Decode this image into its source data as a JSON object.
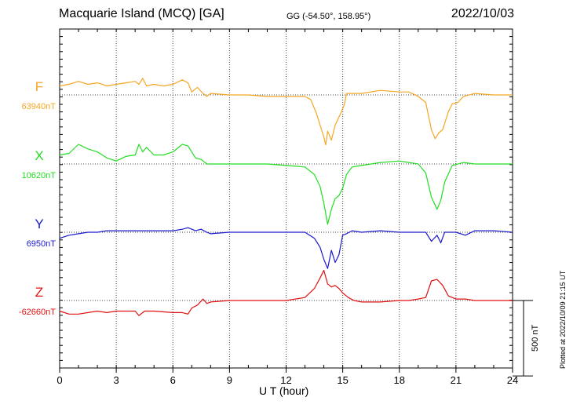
{
  "header": {
    "title": "Macquarie Island (MCQ)  [GA]",
    "coords": "GG (-54.50°, 158.95°)",
    "date": "2022/10/03"
  },
  "footer": {
    "plotted": "Plotted at 2022/10/09 21:15 UT"
  },
  "chart_data": {
    "type": "line",
    "title": "Macquarie Island (MCQ)  [GA]",
    "xlabel": "U T (hour)",
    "ylabel": "",
    "xlim": [
      0,
      24
    ],
    "xticks": [
      "0",
      "3",
      "6",
      "9",
      "12",
      "15",
      "18",
      "21",
      "24"
    ],
    "grid": true,
    "scale_bar": {
      "label": "500 nT",
      "value_nT": 500
    },
    "series": [
      {
        "name": "F",
        "baseline_label": "63940nT",
        "baseline_nT": 63940,
        "color": "#f5a623",
        "points": [
          [
            0,
            -60
          ],
          [
            0.5,
            -70
          ],
          [
            1,
            -90
          ],
          [
            1.5,
            -70
          ],
          [
            2,
            -80
          ],
          [
            2.5,
            -60
          ],
          [
            3,
            -70
          ],
          [
            3.5,
            -80
          ],
          [
            4,
            -90
          ],
          [
            4.2,
            -70
          ],
          [
            4.4,
            -110
          ],
          [
            4.6,
            -60
          ],
          [
            5,
            -70
          ],
          [
            5.5,
            -60
          ],
          [
            6,
            -70
          ],
          [
            6.5,
            -100
          ],
          [
            6.8,
            -80
          ],
          [
            7,
            -20
          ],
          [
            7.3,
            -50
          ],
          [
            7.6,
            -10
          ],
          [
            7.8,
            10
          ],
          [
            8,
            -10
          ],
          [
            9,
            0
          ],
          [
            10,
            0
          ],
          [
            11,
            10
          ],
          [
            12,
            10
          ],
          [
            13,
            10
          ],
          [
            13.3,
            30
          ],
          [
            13.6,
            120
          ],
          [
            13.8,
            200
          ],
          [
            14.0,
            280
          ],
          [
            14.1,
            330
          ],
          [
            14.2,
            240
          ],
          [
            14.4,
            300
          ],
          [
            14.6,
            200
          ],
          [
            14.9,
            120
          ],
          [
            15.1,
            60
          ],
          [
            15.2,
            -10
          ],
          [
            15.5,
            -10
          ],
          [
            16,
            -10
          ],
          [
            17,
            -30
          ],
          [
            18,
            -20
          ],
          [
            18.5,
            -20
          ],
          [
            19,
            10
          ],
          [
            19.4,
            50
          ],
          [
            19.7,
            230
          ],
          [
            19.9,
            290
          ],
          [
            20.1,
            250
          ],
          [
            20.3,
            230
          ],
          [
            20.6,
            110
          ],
          [
            20.8,
            60
          ],
          [
            21.1,
            50
          ],
          [
            21.4,
            10
          ],
          [
            22,
            -10
          ],
          [
            23,
            0
          ],
          [
            24,
            0
          ]
        ]
      },
      {
        "name": "X",
        "baseline_label": "10620nT",
        "baseline_nT": 10620,
        "color": "#22dd22",
        "points": [
          [
            0,
            -60
          ],
          [
            0.5,
            -70
          ],
          [
            1,
            -130
          ],
          [
            1.5,
            -100
          ],
          [
            2,
            -80
          ],
          [
            2.5,
            -40
          ],
          [
            3,
            -20
          ],
          [
            3.5,
            -50
          ],
          [
            4,
            -60
          ],
          [
            4.2,
            -130
          ],
          [
            4.4,
            -80
          ],
          [
            4.6,
            -110
          ],
          [
            5,
            -60
          ],
          [
            5.5,
            -60
          ],
          [
            6,
            -80
          ],
          [
            6.5,
            -130
          ],
          [
            6.8,
            -120
          ],
          [
            7.2,
            -40
          ],
          [
            7.5,
            -30
          ],
          [
            7.8,
            0
          ],
          [
            8,
            0
          ],
          [
            9,
            0
          ],
          [
            10,
            0
          ],
          [
            11,
            0
          ],
          [
            12,
            10
          ],
          [
            13,
            20
          ],
          [
            13.5,
            70
          ],
          [
            13.8,
            150
          ],
          [
            14.0,
            260
          ],
          [
            14.2,
            400
          ],
          [
            14.4,
            300
          ],
          [
            14.6,
            230
          ],
          [
            14.8,
            210
          ],
          [
            15.0,
            160
          ],
          [
            15.2,
            70
          ],
          [
            15.5,
            20
          ],
          [
            16,
            10
          ],
          [
            17,
            -10
          ],
          [
            18,
            -20
          ],
          [
            18.5,
            -10
          ],
          [
            19,
            0
          ],
          [
            19.4,
            60
          ],
          [
            19.7,
            220
          ],
          [
            20.0,
            300
          ],
          [
            20.2,
            240
          ],
          [
            20.4,
            120
          ],
          [
            20.8,
            10
          ],
          [
            21.4,
            -10
          ],
          [
            22,
            0
          ],
          [
            23,
            0
          ],
          [
            24,
            0
          ]
        ]
      },
      {
        "name": "Y",
        "baseline_label": "6950nT",
        "baseline_nT": 6950,
        "color": "#1a1acc",
        "points": [
          [
            0,
            40
          ],
          [
            0.5,
            20
          ],
          [
            1,
            10
          ],
          [
            1.5,
            0
          ],
          [
            2,
            0
          ],
          [
            2.5,
            -10
          ],
          [
            3,
            -10
          ],
          [
            3.5,
            -10
          ],
          [
            4,
            -10
          ],
          [
            5,
            -10
          ],
          [
            6,
            -10
          ],
          [
            6.5,
            -20
          ],
          [
            6.8,
            -30
          ],
          [
            7.2,
            -10
          ],
          [
            7.5,
            -20
          ],
          [
            7.8,
            0
          ],
          [
            8,
            10
          ],
          [
            9,
            0
          ],
          [
            10,
            0
          ],
          [
            11,
            0
          ],
          [
            12,
            0
          ],
          [
            13,
            0
          ],
          [
            13.5,
            40
          ],
          [
            13.8,
            100
          ],
          [
            14.0,
            180
          ],
          [
            14.2,
            240
          ],
          [
            14.4,
            120
          ],
          [
            14.6,
            200
          ],
          [
            14.8,
            150
          ],
          [
            15.0,
            20
          ],
          [
            15.2,
            10
          ],
          [
            15.5,
            -10
          ],
          [
            16,
            0
          ],
          [
            17,
            -10
          ],
          [
            18,
            0
          ],
          [
            18.5,
            0
          ],
          [
            19,
            0
          ],
          [
            19.4,
            0
          ],
          [
            19.7,
            60
          ],
          [
            20.0,
            20
          ],
          [
            20.2,
            70
          ],
          [
            20.4,
            0
          ],
          [
            21,
            0
          ],
          [
            21.5,
            20
          ],
          [
            22,
            -10
          ],
          [
            23,
            -10
          ],
          [
            24,
            0
          ]
        ]
      },
      {
        "name": "Z",
        "baseline_label": "-62660nT",
        "baseline_nT": -62660,
        "color": "#e01010",
        "points": [
          [
            0,
            70
          ],
          [
            0.5,
            90
          ],
          [
            1,
            90
          ],
          [
            1.5,
            80
          ],
          [
            2,
            70
          ],
          [
            2.5,
            80
          ],
          [
            3,
            70
          ],
          [
            3.5,
            70
          ],
          [
            4,
            70
          ],
          [
            4.2,
            100
          ],
          [
            4.5,
            70
          ],
          [
            5,
            70
          ],
          [
            6,
            80
          ],
          [
            6.5,
            80
          ],
          [
            6.8,
            90
          ],
          [
            7,
            50
          ],
          [
            7.3,
            30
          ],
          [
            7.6,
            -10
          ],
          [
            7.8,
            20
          ],
          [
            8,
            10
          ],
          [
            9,
            0
          ],
          [
            10,
            0
          ],
          [
            11,
            0
          ],
          [
            12,
            0
          ],
          [
            13,
            -20
          ],
          [
            13.5,
            -80
          ],
          [
            13.8,
            -150
          ],
          [
            14.0,
            -200
          ],
          [
            14.2,
            -110
          ],
          [
            14.4,
            -90
          ],
          [
            14.6,
            -100
          ],
          [
            14.8,
            -80
          ],
          [
            15.0,
            -50
          ],
          [
            15.3,
            -20
          ],
          [
            15.6,
            0
          ],
          [
            16,
            10
          ],
          [
            17,
            10
          ],
          [
            18,
            0
          ],
          [
            18.5,
            0
          ],
          [
            19,
            -10
          ],
          [
            19.4,
            -20
          ],
          [
            19.7,
            -130
          ],
          [
            20.0,
            -140
          ],
          [
            20.3,
            -100
          ],
          [
            20.6,
            -30
          ],
          [
            21,
            -10
          ],
          [
            21.5,
            -10
          ],
          [
            22,
            0
          ],
          [
            23,
            0
          ],
          [
            24,
            0
          ]
        ]
      }
    ]
  }
}
